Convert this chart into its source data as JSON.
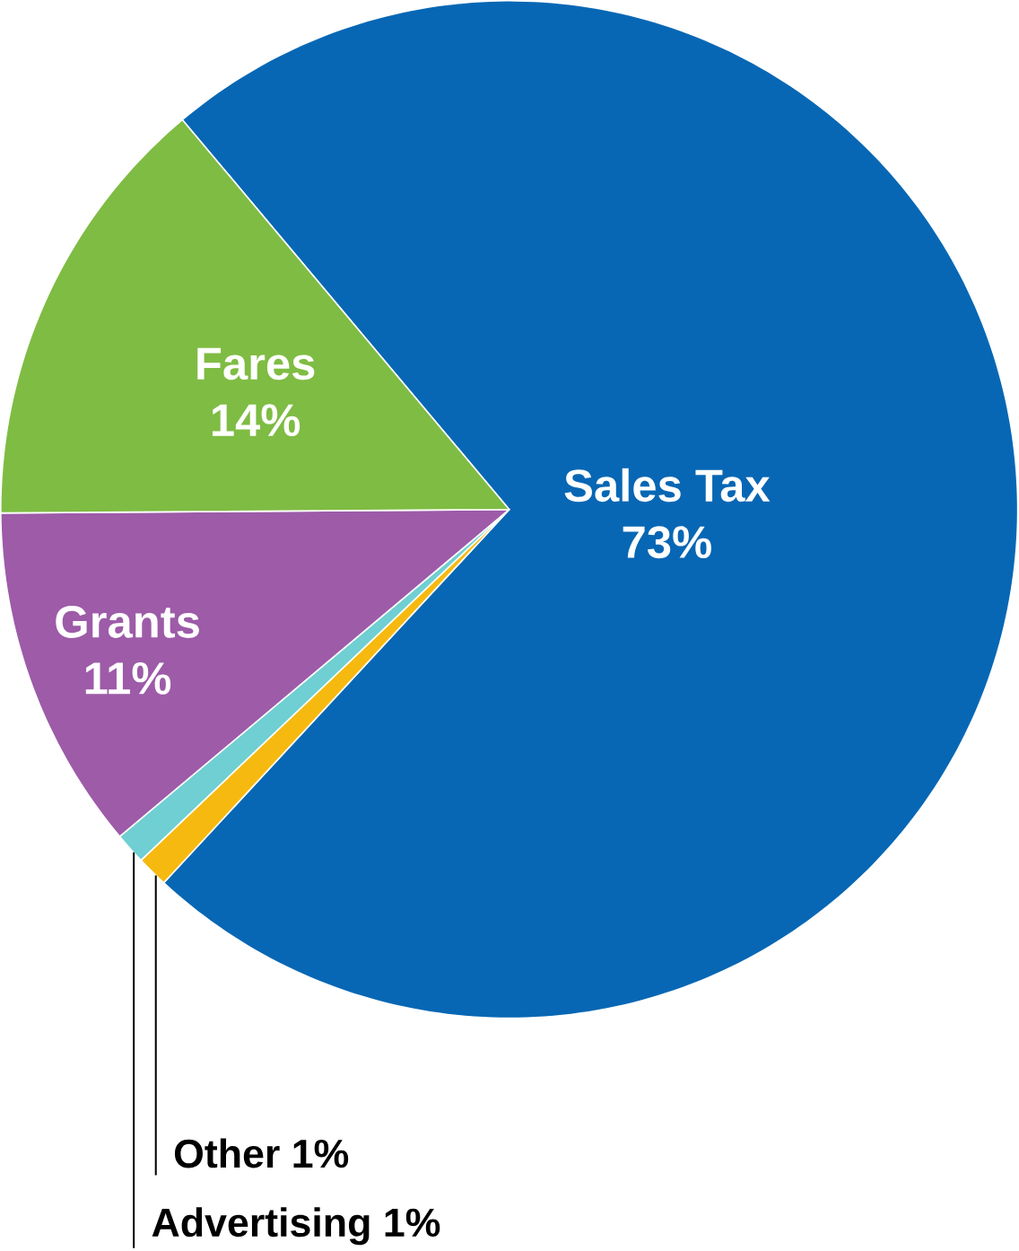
{
  "chart_data": {
    "type": "pie",
    "categories": [
      "Sales Tax",
      "Other",
      "Advertising",
      "Grants",
      "Fares"
    ],
    "values": [
      73,
      1,
      1,
      11,
      14
    ],
    "value_labels": [
      "73%",
      "1%",
      "1%",
      "11%",
      "14%"
    ],
    "colors": [
      "#0767b4",
      "#f6b90f",
      "#6fcfd2",
      "#9d5ba8",
      "#7fbc43"
    ]
  }
}
